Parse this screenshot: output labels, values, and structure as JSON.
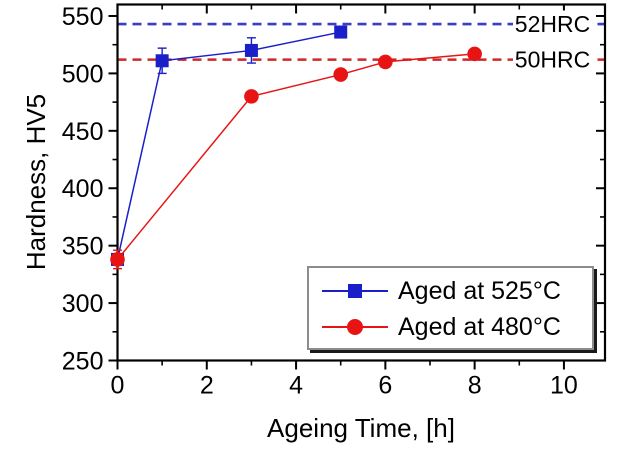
{
  "figure": {
    "background": "#ffffff",
    "axis_color": "#000000",
    "text_color": "#000000"
  },
  "chart_data": {
    "type": "line",
    "title": "",
    "xlabel": "Ageing Time, [h]",
    "ylabel": "Hardness, HV5",
    "xlim": [
      0,
      10.92
    ],
    "ylim": [
      250,
      560
    ],
    "x_major_ticks": [
      0,
      2,
      4,
      6,
      8,
      10
    ],
    "x_minor_ticks": [
      1,
      3,
      5,
      7,
      9
    ],
    "y_major_ticks": [
      250,
      300,
      350,
      400,
      450,
      500,
      550
    ],
    "y_minor_ticks": [
      275,
      325,
      375,
      425,
      475,
      525
    ],
    "grid": false,
    "legend_position": "bottom-right",
    "series": [
      {
        "name": "Aged at 525°C",
        "color": "#1b1fca",
        "marker": "square",
        "x": [
          0,
          1,
          3,
          5
        ],
        "y": [
          338,
          511,
          520,
          536
        ],
        "yerr": [
          0,
          11,
          11,
          5
        ]
      },
      {
        "name": "Aged at 480°C",
        "color": "#e81414",
        "marker": "circle",
        "x": [
          0,
          3,
          5,
          6,
          8
        ],
        "y": [
          338,
          480,
          499,
          510,
          517
        ],
        "yerr": [
          8,
          0,
          0,
          0,
          0
        ]
      }
    ],
    "reference_lines": [
      {
        "label": "52HRC",
        "value": 543,
        "color": "#3a3ec2"
      },
      {
        "label": "50HRC",
        "value": 512,
        "color": "#cf2828"
      }
    ]
  }
}
